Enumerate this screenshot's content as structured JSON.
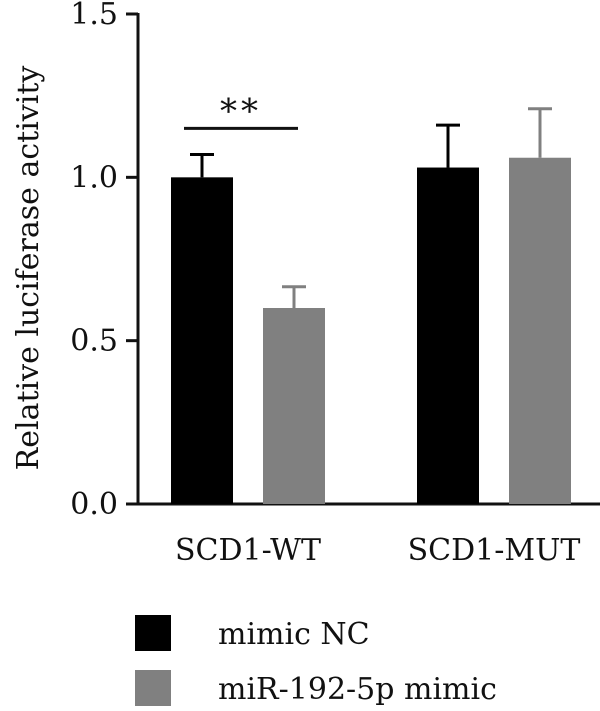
{
  "chart_data": {
    "type": "bar",
    "ylabel": "Relative luciferase activity",
    "xlabel": "",
    "ylim": [
      0,
      1.5
    ],
    "yticks": [
      0.0,
      0.5,
      1.0,
      1.5
    ],
    "ytick_labels": [
      "0.0",
      "0.5",
      "1.0",
      "1.5"
    ],
    "categories": [
      "SCD1-WT",
      "SCD1-MUT"
    ],
    "series": [
      {
        "name": "mimic NC",
        "color": "#000000",
        "values": [
          1.0,
          1.03
        ],
        "errors": [
          0.07,
          0.13
        ]
      },
      {
        "name": "miR-192-5p mimic",
        "color": "#808080",
        "values": [
          0.6,
          1.06
        ],
        "errors": [
          0.065,
          0.15
        ]
      }
    ],
    "significance": [
      {
        "category_index": 0,
        "label": "**",
        "y": 1.15
      }
    ],
    "legend": {
      "placement": "bottom"
    },
    "grid": false
  }
}
